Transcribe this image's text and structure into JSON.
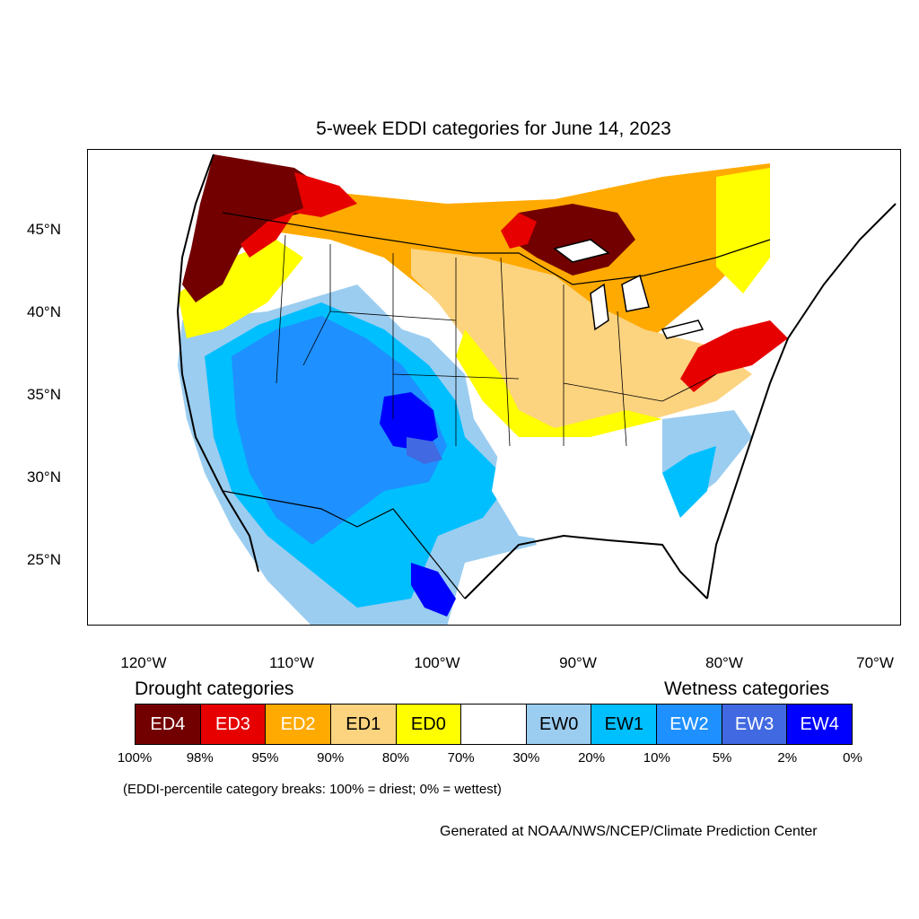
{
  "title": "5-week EDDI categories for June 14, 2023",
  "lat_labels": [
    "45°N",
    "40°N",
    "35°N",
    "30°N",
    "25°N"
  ],
  "lon_labels": [
    "120°W",
    "110°W",
    "100°W",
    "90°W",
    "80°W",
    "70°W"
  ],
  "legend": {
    "drought_heading": "Drought categories",
    "wetness_heading": "Wetness categories",
    "categories": [
      {
        "label": "ED4",
        "color": "#730000",
        "text_color": "#ffffff"
      },
      {
        "label": "ED3",
        "color": "#e60000",
        "text_color": "#ffffff"
      },
      {
        "label": "ED2",
        "color": "#ffaa00",
        "text_color": "#ffffff"
      },
      {
        "label": "ED1",
        "color": "#fcd37f",
        "text_color": "#000000"
      },
      {
        "label": "ED0",
        "color": "#ffff00",
        "text_color": "#000000"
      },
      {
        "label": "",
        "color": "#ffffff",
        "text_color": "#000000"
      },
      {
        "label": "EW0",
        "color": "#9bcdf0",
        "text_color": "#000000"
      },
      {
        "label": "EW1",
        "color": "#00bfff",
        "text_color": "#000000"
      },
      {
        "label": "EW2",
        "color": "#1e90ff",
        "text_color": "#ffffff"
      },
      {
        "label": "EW3",
        "color": "#4169e1",
        "text_color": "#ffffff"
      },
      {
        "label": "EW4",
        "color": "#0000ff",
        "text_color": "#ffffff"
      }
    ],
    "breaks": [
      "100%",
      "98%",
      "95%",
      "90%",
      "80%",
      "70%",
      "30%",
      "20%",
      "10%",
      "5%",
      "2%",
      "0%"
    ]
  },
  "note": "(EDDI-percentile category breaks: 100% = driest; 0% = wettest)",
  "credit": "Generated at NOAA/NWS/NCEP/Climate Prediction Center"
}
